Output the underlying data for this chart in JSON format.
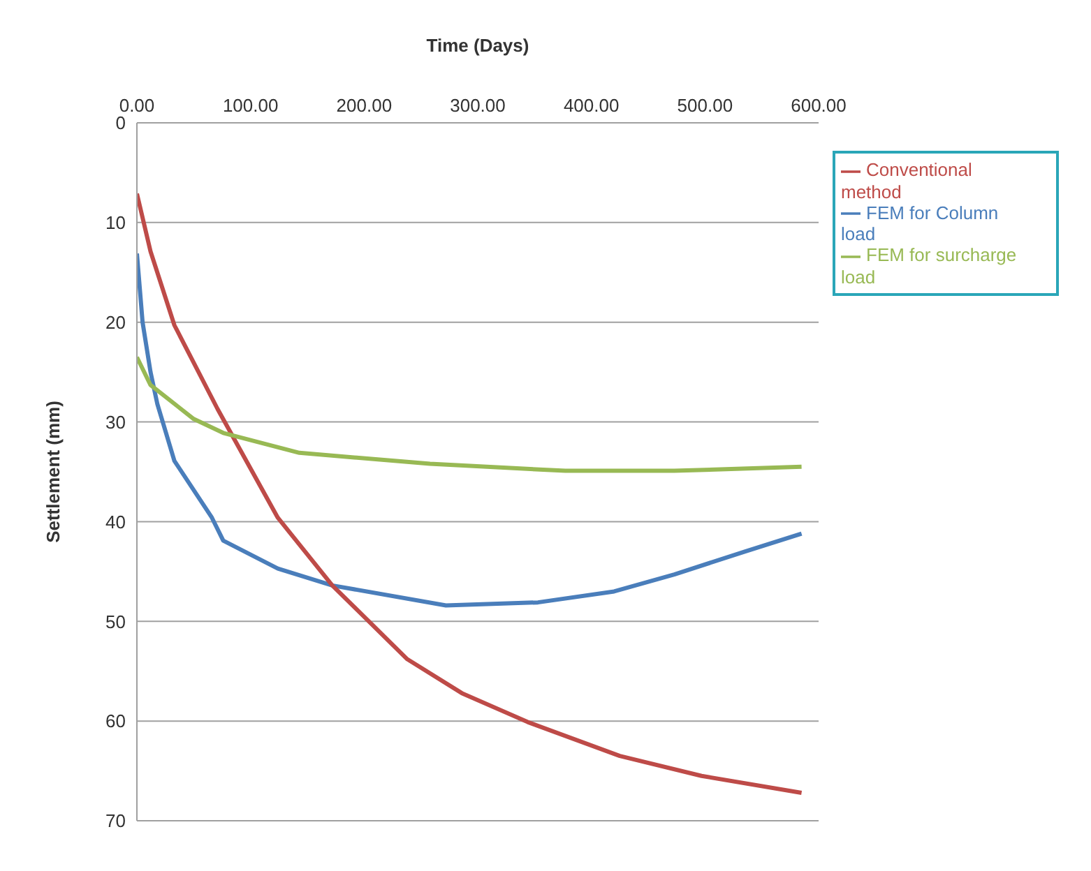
{
  "chart_data": {
    "type": "line",
    "xlabel": "Time (Days)",
    "ylabel": "Settlement (mm)",
    "xlim": [
      0,
      600
    ],
    "xticks": [
      {
        "value": 0,
        "label": "0.00"
      },
      {
        "value": 100,
        "label": "100.00"
      },
      {
        "value": 200,
        "label": "200.00"
      },
      {
        "value": 300,
        "label": "300.00"
      },
      {
        "value": 400,
        "label": "400.00"
      },
      {
        "value": 500,
        "label": "500.00"
      },
      {
        "value": 600,
        "label": "600.00"
      }
    ],
    "ylim": [
      70,
      0
    ],
    "yticks": [
      0,
      10,
      20,
      30,
      40,
      50,
      60,
      70
    ],
    "grid": "y",
    "legend": "top right",
    "marker": "none",
    "line_style": "solid",
    "series": [
      {
        "name": "FEM for Column load",
        "color": "#4a7ebb",
        "x": [
          0,
          5,
          12,
          18,
          33,
          66,
          76,
          124,
          172,
          272,
          353,
          420,
          473,
          535,
          585
        ],
        "values": [
          13.1,
          20,
          25,
          28.2,
          33.9,
          39.6,
          41.9,
          44.7,
          46.4,
          48.4,
          48.1,
          47.0,
          45.3,
          43.0,
          41.2
        ]
      },
      {
        "name": "Conventional method",
        "color": "#be4b48",
        "x": [
          0,
          12,
          33,
          71,
          124,
          172,
          238,
          286,
          344,
          425,
          497,
          585
        ],
        "values": [
          7.1,
          12.9,
          20.3,
          28.7,
          39.6,
          46.4,
          53.8,
          57.2,
          60.1,
          63.5,
          65.5,
          67.2
        ]
      },
      {
        "name": "FEM for surcharge load",
        "color": "#98b954",
        "x": [
          0,
          12,
          50,
          76,
          143,
          258,
          377,
          473,
          585
        ],
        "values": [
          23.5,
          26.3,
          29.7,
          31.1,
          33.1,
          34.2,
          34.9,
          34.9,
          34.5
        ]
      }
    ]
  }
}
